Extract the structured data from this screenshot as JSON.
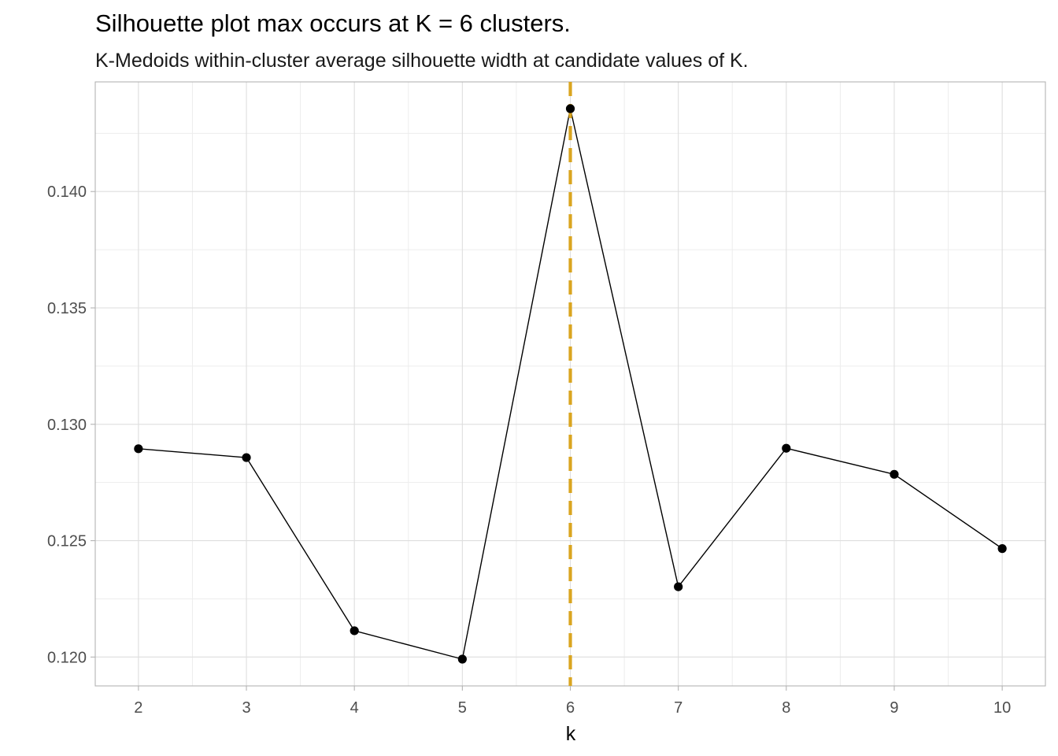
{
  "chart_data": {
    "type": "line",
    "title": "Silhouette plot max occurs at K = 6 clusters.",
    "subtitle": "K-Medoids within-cluster average silhouette width at candidate values of K.",
    "xlabel": "k",
    "ylabel": "",
    "x": [
      2,
      3,
      4,
      5,
      6,
      7,
      8,
      9,
      10
    ],
    "series": [
      {
        "values": [
          0.12895,
          0.12857,
          0.12113,
          0.11991,
          0.14356,
          0.12302,
          0.12897,
          0.12785,
          0.12466
        ],
        "color": "#000000"
      }
    ],
    "xlim": [
      1.6,
      10.4
    ],
    "ylim": [
      0.11876,
      0.14471
    ],
    "x_ticks": [
      2,
      3,
      4,
      5,
      6,
      7,
      8,
      9,
      10
    ],
    "x_tick_labels": [
      "2",
      "3",
      "4",
      "5",
      "6",
      "7",
      "8",
      "9",
      "10"
    ],
    "y_ticks": [
      0.12,
      0.125,
      0.13,
      0.135,
      0.14
    ],
    "y_tick_labels": [
      "0.120",
      "0.125",
      "0.130",
      "0.135",
      "0.140"
    ],
    "reference_line": {
      "x": 6,
      "style": "dashed",
      "color": "#DAA520"
    },
    "grid": true,
    "legend": "none",
    "theme_colors": {
      "grid_major": "#dedede",
      "grid_minor": "#ededed",
      "panel_border": "#b3b3b3",
      "tick_label": "#4d4d4d",
      "point": "#000000"
    }
  }
}
